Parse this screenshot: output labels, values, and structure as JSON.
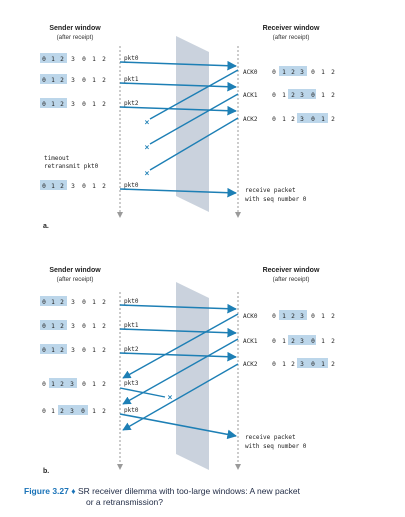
{
  "panel_a": {
    "part_label": "a.",
    "sender_title": "Sender window",
    "sender_subtitle": "(after receipt)",
    "receiver_title": "Receiver window",
    "receiver_subtitle": "(after receipt)",
    "sender_rows": [
      {
        "seq": [
          "0",
          "1",
          "2",
          "3",
          "0",
          "1",
          "2"
        ],
        "hl_start": 0,
        "hl_len": 3,
        "pkt": "pkt0"
      },
      {
        "seq": [
          "0",
          "1",
          "2",
          "3",
          "0",
          "1",
          "2"
        ],
        "hl_start": 0,
        "hl_len": 3,
        "pkt": "pkt1"
      },
      {
        "seq": [
          "0",
          "1",
          "2",
          "3",
          "0",
          "1",
          "2"
        ],
        "hl_start": 0,
        "hl_len": 3,
        "pkt": "pkt2"
      },
      {
        "seq": [
          "0",
          "1",
          "2",
          "3",
          "0",
          "1",
          "2"
        ],
        "hl_start": 0,
        "hl_len": 3,
        "pkt": "pkt0"
      }
    ],
    "receiver_rows": [
      {
        "ack": "ACK0",
        "seq": [
          "0",
          "1",
          "2",
          "3",
          "0",
          "1",
          "2"
        ],
        "hl_start": 1,
        "hl_len": 3
      },
      {
        "ack": "ACK1",
        "seq": [
          "0",
          "1",
          "2",
          "3",
          "0",
          "1",
          "2"
        ],
        "hl_start": 2,
        "hl_len": 3
      },
      {
        "ack": "ACK2",
        "seq": [
          "0",
          "1",
          "2",
          "3",
          "0",
          "1",
          "2"
        ],
        "hl_start": 3,
        "hl_len": 3
      }
    ],
    "timeout_line1": "timeout",
    "timeout_line2": "retransmit pkt0",
    "receive_line1": "receive packet",
    "receive_line2": "with seq number 0"
  },
  "panel_b": {
    "part_label": "b.",
    "sender_title": "Sender window",
    "sender_subtitle": "(after receipt)",
    "receiver_title": "Receiver window",
    "receiver_subtitle": "(after receipt)",
    "sender_rows": [
      {
        "seq": [
          "0",
          "1",
          "2",
          "3",
          "0",
          "1",
          "2"
        ],
        "hl_start": 0,
        "hl_len": 3,
        "pkt": "pkt0"
      },
      {
        "seq": [
          "0",
          "1",
          "2",
          "3",
          "0",
          "1",
          "2"
        ],
        "hl_start": 0,
        "hl_len": 3,
        "pkt": "pkt1"
      },
      {
        "seq": [
          "0",
          "1",
          "2",
          "3",
          "0",
          "1",
          "2"
        ],
        "hl_start": 0,
        "hl_len": 3,
        "pkt": "pkt2"
      },
      {
        "seq": [
          "0",
          "1",
          "2",
          "3",
          "0",
          "1",
          "2"
        ],
        "hl_start": 1,
        "hl_len": 3,
        "pkt": "pkt3"
      },
      {
        "seq": [
          "0",
          "1",
          "2",
          "3",
          "0",
          "1",
          "2"
        ],
        "hl_start": 2,
        "hl_len": 3,
        "pkt": "pkt0"
      }
    ],
    "receiver_rows": [
      {
        "ack": "ACK0",
        "seq": [
          "0",
          "1",
          "2",
          "3",
          "0",
          "1",
          "2"
        ],
        "hl_start": 1,
        "hl_len": 3
      },
      {
        "ack": "ACK1",
        "seq": [
          "0",
          "1",
          "2",
          "3",
          "0",
          "1",
          "2"
        ],
        "hl_start": 2,
        "hl_len": 3
      },
      {
        "ack": "ACK2",
        "seq": [
          "0",
          "1",
          "2",
          "3",
          "0",
          "1",
          "2"
        ],
        "hl_start": 3,
        "hl_len": 3
      }
    ],
    "receive_line1": "receive packet",
    "receive_line2": "with seq number 0"
  },
  "caption": {
    "figure": "Figure 3.27",
    "bullet": "♦",
    "line1": "SR receiver dilemma with too-large windows: A new packet",
    "line2": "or a retransmission?"
  },
  "colors": {
    "arrow": "#1d7fb5",
    "highlight": "#bcd6ea",
    "channel": "#b8c3d1",
    "timeline": "#9a9a9a"
  }
}
